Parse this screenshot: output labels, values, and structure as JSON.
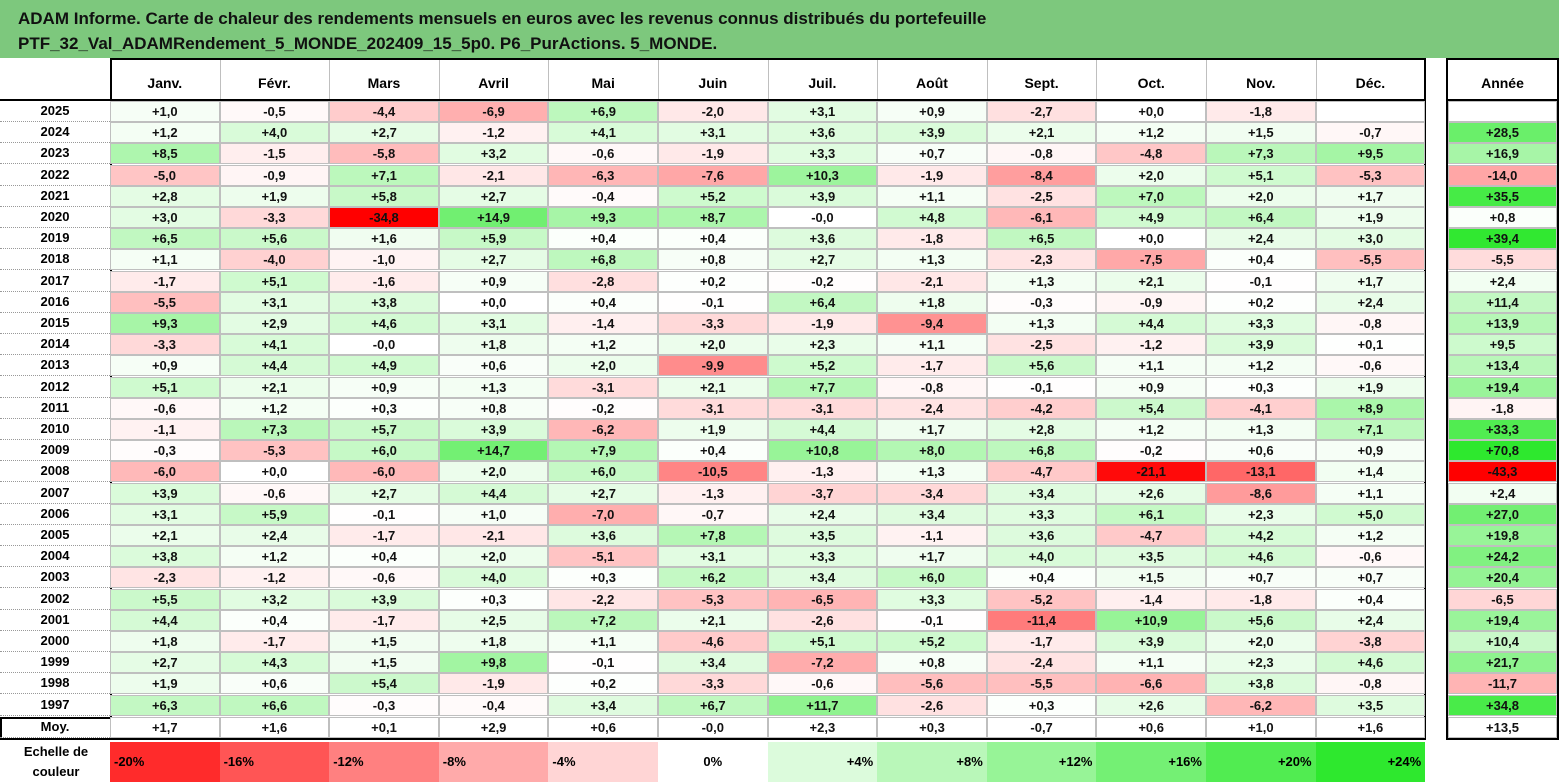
{
  "title": {
    "line1": "ADAM Informe. Carte de chaleur des rendements mensuels en euros avec les revenus connus distribués du portefeuille",
    "line2": "PTF_32_Val_ADAMRendement_5_MONDE_202409_15_5p0. P6_PurActions. 5_MONDE."
  },
  "colors": {
    "title_bg": "#7dc87d",
    "neg_max": "#ff0000",
    "pos_max": "#2ee82e"
  },
  "chart_data": {
    "type": "heatmap",
    "title": "Carte de chaleur des rendements mensuels",
    "months": [
      "Janv.",
      "Févr.",
      "Mars",
      "Avril",
      "Mai",
      "Juin",
      "Juil.",
      "Août",
      "Sept.",
      "Oct.",
      "Nov.",
      "Déc."
    ],
    "year_header": "Année",
    "rows": [
      {
        "year": "2025",
        "values": [
          "+1,0",
          "-0,5",
          "-4,4",
          "-6,9",
          "+6,9",
          "-2,0",
          "+3,1",
          "+0,9",
          "-2,7",
          "+0,0",
          "-1,8",
          ""
        ],
        "annual": ""
      },
      {
        "year": "2024",
        "values": [
          "+1,2",
          "+4,0",
          "+2,7",
          "-1,2",
          "+4,1",
          "+3,1",
          "+3,6",
          "+3,9",
          "+2,1",
          "+1,2",
          "+1,5",
          "-0,7"
        ],
        "annual": "+28,5"
      },
      {
        "year": "2023",
        "values": [
          "+8,5",
          "-1,5",
          "-5,8",
          "+3,2",
          "-0,6",
          "-1,9",
          "+3,3",
          "+0,7",
          "-0,8",
          "-4,8",
          "+7,3",
          "+9,5"
        ],
        "annual": "+16,9"
      },
      {
        "year": "2022",
        "values": [
          "-5,0",
          "-0,9",
          "+7,1",
          "-2,1",
          "-6,3",
          "-7,6",
          "+10,3",
          "-1,9",
          "-8,4",
          "+2,0",
          "+5,1",
          "-5,3"
        ],
        "annual": "-14,0"
      },
      {
        "year": "2021",
        "values": [
          "+2,8",
          "+1,9",
          "+5,8",
          "+2,7",
          "-0,4",
          "+5,2",
          "+3,9",
          "+1,1",
          "-2,5",
          "+7,0",
          "+2,0",
          "+1,7"
        ],
        "annual": "+35,5"
      },
      {
        "year": "2020",
        "values": [
          "+3,0",
          "-3,3",
          "-34,8",
          "+14,9",
          "+9,3",
          "+8,7",
          "-0,0",
          "+4,8",
          "-6,1",
          "+4,9",
          "+6,4",
          "+1,9"
        ],
        "annual": "+0,8"
      },
      {
        "year": "2019",
        "values": [
          "+6,5",
          "+5,6",
          "+1,6",
          "+5,9",
          "+0,4",
          "+0,4",
          "+3,6",
          "-1,8",
          "+6,5",
          "+0,0",
          "+2,4",
          "+3,0"
        ],
        "annual": "+39,4"
      },
      {
        "year": "2018",
        "values": [
          "+1,1",
          "-4,0",
          "-1,0",
          "+2,7",
          "+6,8",
          "+0,8",
          "+2,7",
          "+1,3",
          "-2,3",
          "-7,5",
          "+0,4",
          "-5,5"
        ],
        "annual": "-5,5"
      },
      {
        "year": "2017",
        "values": [
          "-1,7",
          "+5,1",
          "-1,6",
          "+0,9",
          "-2,8",
          "+0,2",
          "-0,2",
          "-2,1",
          "+1,3",
          "+2,1",
          "-0,1",
          "+1,7"
        ],
        "annual": "+2,4"
      },
      {
        "year": "2016",
        "values": [
          "-5,5",
          "+3,1",
          "+3,8",
          "+0,0",
          "+0,4",
          "-0,1",
          "+6,4",
          "+1,8",
          "-0,3",
          "-0,9",
          "+0,2",
          "+2,4"
        ],
        "annual": "+11,4"
      },
      {
        "year": "2015",
        "values": [
          "+9,3",
          "+2,9",
          "+4,6",
          "+3,1",
          "-1,4",
          "-3,3",
          "-1,9",
          "-9,4",
          "+1,3",
          "+4,4",
          "+3,3",
          "-0,8"
        ],
        "annual": "+13,9"
      },
      {
        "year": "2014",
        "values": [
          "-3,3",
          "+4,1",
          "-0,0",
          "+1,8",
          "+1,2",
          "+2,0",
          "+2,3",
          "+1,1",
          "-2,5",
          "-1,2",
          "+3,9",
          "+0,1"
        ],
        "annual": "+9,5"
      },
      {
        "year": "2013",
        "values": [
          "+0,9",
          "+4,4",
          "+4,9",
          "+0,6",
          "+2,0",
          "-9,9",
          "+5,2",
          "-1,7",
          "+5,6",
          "+1,1",
          "+1,2",
          "-0,6"
        ],
        "annual": "+13,4"
      },
      {
        "year": "2012",
        "values": [
          "+5,1",
          "+2,1",
          "+0,9",
          "+1,3",
          "-3,1",
          "+2,1",
          "+7,7",
          "-0,8",
          "-0,1",
          "+0,9",
          "+0,3",
          "+1,9"
        ],
        "annual": "+19,4"
      },
      {
        "year": "2011",
        "values": [
          "-0,6",
          "+1,2",
          "+0,3",
          "+0,8",
          "-0,2",
          "-3,1",
          "-3,1",
          "-2,4",
          "-4,2",
          "+5,4",
          "-4,1",
          "+8,9"
        ],
        "annual": "-1,8"
      },
      {
        "year": "2010",
        "values": [
          "-1,1",
          "+7,3",
          "+5,7",
          "+3,9",
          "-6,2",
          "+1,9",
          "+4,4",
          "+1,7",
          "+2,8",
          "+1,2",
          "+1,3",
          "+7,1"
        ],
        "annual": "+33,3"
      },
      {
        "year": "2009",
        "values": [
          "-0,3",
          "-5,3",
          "+6,0",
          "+14,7",
          "+7,9",
          "+0,4",
          "+10,8",
          "+8,0",
          "+6,8",
          "-0,2",
          "+0,6",
          "+0,9"
        ],
        "annual": "+70,8"
      },
      {
        "year": "2008",
        "values": [
          "-6,0",
          "+0,0",
          "-6,0",
          "+2,0",
          "+6,0",
          "-10,5",
          "-1,3",
          "+1,3",
          "-4,7",
          "-21,1",
          "-13,1",
          "+1,4"
        ],
        "annual": "-43,3"
      },
      {
        "year": "2007",
        "values": [
          "+3,9",
          "-0,6",
          "+2,7",
          "+4,4",
          "+2,7",
          "-1,3",
          "-3,7",
          "-3,4",
          "+3,4",
          "+2,6",
          "-8,6",
          "+1,1"
        ],
        "annual": "+2,4"
      },
      {
        "year": "2006",
        "values": [
          "+3,1",
          "+5,9",
          "-0,1",
          "+1,0",
          "-7,0",
          "-0,7",
          "+2,4",
          "+3,4",
          "+3,3",
          "+6,1",
          "+2,3",
          "+5,0"
        ],
        "annual": "+27,0"
      },
      {
        "year": "2005",
        "values": [
          "+2,1",
          "+2,4",
          "-1,7",
          "-2,1",
          "+3,6",
          "+7,8",
          "+3,5",
          "-1,1",
          "+3,6",
          "-4,7",
          "+4,2",
          "+1,2"
        ],
        "annual": "+19,8"
      },
      {
        "year": "2004",
        "values": [
          "+3,8",
          "+1,2",
          "+0,4",
          "+2,0",
          "-5,1",
          "+3,1",
          "+3,3",
          "+1,7",
          "+4,0",
          "+3,5",
          "+4,6",
          "-0,6"
        ],
        "annual": "+24,2"
      },
      {
        "year": "2003",
        "values": [
          "-2,3",
          "-1,2",
          "-0,6",
          "+4,0",
          "+0,3",
          "+6,2",
          "+3,4",
          "+6,0",
          "+0,4",
          "+1,5",
          "+0,7",
          "+0,7"
        ],
        "annual": "+20,4"
      },
      {
        "year": "2002",
        "values": [
          "+5,5",
          "+3,2",
          "+3,9",
          "+0,3",
          "-2,2",
          "-5,3",
          "-6,5",
          "+3,3",
          "-5,2",
          "-1,4",
          "-1,8",
          "+0,4"
        ],
        "annual": "-6,5"
      },
      {
        "year": "2001",
        "values": [
          "+4,4",
          "+0,4",
          "-1,7",
          "+2,5",
          "+7,2",
          "+2,1",
          "-2,6",
          "-0,1",
          "-11,4",
          "+10,9",
          "+5,6",
          "+2,4"
        ],
        "annual": "+19,4"
      },
      {
        "year": "2000",
        "values": [
          "+1,8",
          "-1,7",
          "+1,5",
          "+1,8",
          "+1,1",
          "-4,6",
          "+5,1",
          "+5,2",
          "-1,7",
          "+3,9",
          "+2,0",
          "-3,8"
        ],
        "annual": "+10,4"
      },
      {
        "year": "1999",
        "values": [
          "+2,7",
          "+4,3",
          "+1,5",
          "+9,8",
          "-0,1",
          "+3,4",
          "-7,2",
          "+0,8",
          "-2,4",
          "+1,1",
          "+2,3",
          "+4,6"
        ],
        "annual": "+21,7"
      },
      {
        "year": "1998",
        "values": [
          "+1,9",
          "+0,6",
          "+5,4",
          "-1,9",
          "+0,2",
          "-3,3",
          "-0,6",
          "-5,6",
          "-5,5",
          "-6,6",
          "+3,8",
          "-0,8"
        ],
        "annual": "-11,7"
      },
      {
        "year": "1997",
        "values": [
          "+6,3",
          "+6,6",
          "-0,3",
          "-0,4",
          "+3,4",
          "+6,7",
          "+11,7",
          "-2,6",
          "+0,3",
          "+2,6",
          "-6,2",
          "+3,5"
        ],
        "annual": "+34,8"
      }
    ],
    "average": {
      "label": "Moy.",
      "values": [
        "+1,7",
        "+1,6",
        "+0,1",
        "+2,9",
        "+0,6",
        "-0,0",
        "+2,3",
        "+0,3",
        "-0,7",
        "+0,6",
        "+1,0",
        "+1,6"
      ],
      "annual": "+13,5"
    },
    "scale": {
      "label_line1": "Echelle de",
      "label_line2": "couleur",
      "steps": [
        {
          "label": "-20%",
          "value": -20
        },
        {
          "label": "-16%",
          "value": -16
        },
        {
          "label": "-12%",
          "value": -12
        },
        {
          "label": "-8%",
          "value": -8
        },
        {
          "label": "-4%",
          "value": -4
        },
        {
          "label": "0%",
          "value": 0
        },
        {
          "label": "+4%",
          "value": 4
        },
        {
          "label": "+8%",
          "value": 8
        },
        {
          "label": "+12%",
          "value": 12
        },
        {
          "label": "+16%",
          "value": 16
        },
        {
          "label": "+20%",
          "value": 20
        },
        {
          "label": "+24%",
          "value": 24
        }
      ]
    }
  }
}
